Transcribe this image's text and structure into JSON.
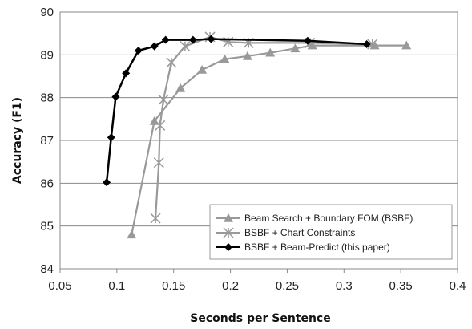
{
  "chart_data": {
    "type": "line",
    "xlabel": "Seconds per Sentence",
    "ylabel": "Accuracy (F1)",
    "xlim": [
      0.05,
      0.4
    ],
    "ylim": [
      84,
      90
    ],
    "x_ticks": [
      "0.05",
      "0.1",
      "0.15",
      "0.2",
      "0.25",
      "0.3",
      "0.35",
      "0.4"
    ],
    "y_ticks": [
      "84",
      "85",
      "86",
      "87",
      "88",
      "89",
      "90"
    ],
    "grid": "horizontal",
    "legend_position": "bottom-right",
    "series": [
      {
        "name": "Beam Search + Boundary FOM (BSBF)",
        "color": "#999999",
        "marker": "triangle",
        "points": [
          [
            0.113,
            84.8
          ],
          [
            0.133,
            87.45
          ],
          [
            0.156,
            88.22
          ],
          [
            0.175,
            88.65
          ],
          [
            0.195,
            88.9
          ],
          [
            0.215,
            88.97
          ],
          [
            0.235,
            89.05
          ],
          [
            0.257,
            89.15
          ],
          [
            0.272,
            89.22
          ],
          [
            0.327,
            89.22
          ],
          [
            0.355,
            89.22
          ]
        ]
      },
      {
        "name": "BSBF + Chart Constraints",
        "color": "#999999",
        "marker": "star",
        "points": [
          [
            0.134,
            85.18
          ],
          [
            0.137,
            86.48
          ],
          [
            0.138,
            87.35
          ],
          [
            0.141,
            87.95
          ],
          [
            0.148,
            88.82
          ],
          [
            0.16,
            89.2
          ],
          [
            0.182,
            89.42
          ],
          [
            0.198,
            89.3
          ],
          [
            0.216,
            89.28
          ],
          [
            0.27,
            89.28
          ],
          [
            0.325,
            89.25
          ]
        ]
      },
      {
        "name": "BSBF + Beam-Predict (this paper)",
        "color": "#000000",
        "marker": "diamond",
        "points": [
          [
            0.091,
            86.02
          ],
          [
            0.095,
            87.07
          ],
          [
            0.099,
            88.02
          ],
          [
            0.108,
            88.57
          ],
          [
            0.119,
            89.1
          ],
          [
            0.133,
            89.2
          ],
          [
            0.143,
            89.35
          ],
          [
            0.167,
            89.35
          ],
          [
            0.183,
            89.37
          ],
          [
            0.268,
            89.33
          ],
          [
            0.32,
            89.25
          ]
        ]
      }
    ]
  }
}
